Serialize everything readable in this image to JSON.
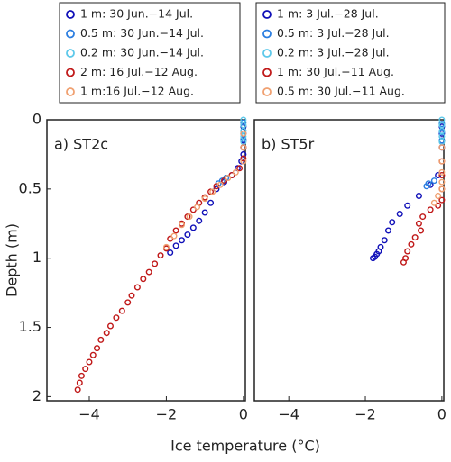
{
  "chart_data": [
    {
      "type": "scatter",
      "title": "a) ST2c",
      "xlabel": "Ice temperature (°C)",
      "ylabel": "Depth (m)",
      "xlim": [
        -5.1,
        0.05
      ],
      "ylim": [
        0,
        2.03
      ],
      "xticks": [
        {
          "value": -4,
          "label": "−4"
        },
        {
          "value": -2,
          "label": "−2"
        },
        0
      ],
      "yticks": [
        0,
        0.5,
        1,
        1.5,
        2
      ],
      "series": [
        {
          "name": "1 m: 30 Jun.−14 Jul.",
          "color": "#1010b8",
          "x": [
            0,
            0,
            0,
            0,
            0,
            -0.05,
            -0.15,
            -0.3,
            -0.5,
            -0.7,
            -0.85,
            -1.0,
            -1.15,
            -1.3,
            -1.45,
            -1.6,
            -1.75,
            -1.9
          ],
          "y": [
            0.05,
            0.1,
            0.15,
            0.2,
            0.25,
            0.3,
            0.35,
            0.4,
            0.45,
            0.5,
            0.6,
            0.67,
            0.73,
            0.78,
            0.83,
            0.87,
            0.91,
            0.96
          ]
        },
        {
          "name": "0.5 m: 30 Jun.−14 Jul.",
          "color": "#2a7de0",
          "x": [
            0,
            0,
            0,
            0,
            -0.45,
            -0.55,
            -0.65
          ],
          "y": [
            0.02,
            0.08,
            0.14,
            0.2,
            0.42,
            0.44,
            0.46
          ]
        },
        {
          "name": "0.2 m: 30 Jun.−14 Jul.",
          "color": "#5cc8ea",
          "x": [
            0,
            0,
            0,
            0,
            0
          ],
          "y": [
            0,
            0.04,
            0.08,
            0.12,
            0.16
          ]
        },
        {
          "name": "2 m: 16 Jul.−12 Aug.",
          "color": "#c01818",
          "x": [
            0,
            0,
            -0.1,
            -0.3,
            -0.5,
            -0.7,
            -0.85,
            -1.0,
            -1.15,
            -1.3,
            -1.45,
            -1.6,
            -1.75,
            -1.9,
            -2.0,
            -2.15,
            -2.3,
            -2.45,
            -2.6,
            -2.75,
            -2.9,
            -3.0,
            -3.15,
            -3.3,
            -3.45,
            -3.55,
            -3.7,
            -3.8,
            -3.9,
            -4.0,
            -4.1,
            -4.2,
            -4.25,
            -4.3
          ],
          "y": [
            0.2,
            0.28,
            0.35,
            0.4,
            0.44,
            0.48,
            0.52,
            0.56,
            0.6,
            0.65,
            0.7,
            0.75,
            0.8,
            0.86,
            0.93,
            0.98,
            1.04,
            1.1,
            1.15,
            1.21,
            1.27,
            1.32,
            1.38,
            1.43,
            1.49,
            1.54,
            1.59,
            1.65,
            1.7,
            1.75,
            1.8,
            1.85,
            1.9,
            1.95
          ]
        },
        {
          "name": "1 m:16 Jul.−12 Aug.",
          "color": "#f0a070",
          "x": [
            0,
            0,
            0,
            -0.2,
            -0.4,
            -0.6,
            -0.8,
            -1.0,
            -1.2,
            -1.4,
            -1.6,
            -1.8,
            -2.0
          ],
          "y": [
            0.1,
            0.2,
            0.3,
            0.38,
            0.42,
            0.47,
            0.52,
            0.57,
            0.63,
            0.7,
            0.76,
            0.84,
            0.92
          ]
        }
      ]
    },
    {
      "type": "scatter",
      "title": "b) ST5r",
      "xlim": [
        -4.9,
        0.05
      ],
      "ylim": [
        0,
        2.03
      ],
      "xticks": [
        {
          "value": -4,
          "label": "−4"
        },
        {
          "value": -2,
          "label": "−2"
        },
        0
      ],
      "series": [
        {
          "name": "1 m: 3 Jul.−28 Jul.",
          "color": "#1010b8",
          "x": [
            0,
            0,
            0,
            0,
            -0.1,
            -0.3,
            -0.6,
            -0.9,
            -1.1,
            -1.3,
            -1.4,
            -1.5,
            -1.6,
            -1.65,
            -1.7,
            -1.75,
            -1.8
          ],
          "y": [
            0.05,
            0.1,
            0.15,
            0.2,
            0.4,
            0.47,
            0.55,
            0.62,
            0.68,
            0.74,
            0.8,
            0.87,
            0.92,
            0.95,
            0.97,
            0.99,
            1.0
          ]
        },
        {
          "name": "0.5 m: 3 Jul.−28 Jul.",
          "color": "#2a7de0",
          "x": [
            0,
            0,
            0,
            -0.2,
            -0.35,
            -0.4
          ],
          "y": [
            0.03,
            0.09,
            0.15,
            0.44,
            0.46,
            0.48
          ]
        },
        {
          "name": "0.2 m: 3 Jul.−28 Jul.",
          "color": "#5cc8ea",
          "x": [
            0,
            0,
            0,
            0,
            0
          ],
          "y": [
            0,
            0.04,
            0.08,
            0.12,
            0.16
          ]
        },
        {
          "name": "1 m: 30 Jul.−11 Aug.",
          "color": "#c01818",
          "x": [
            0,
            0,
            0,
            0,
            -0.1,
            -0.3,
            -0.5,
            -0.6,
            -0.55,
            -0.7,
            -0.8,
            -0.9,
            -0.95,
            -1.0
          ],
          "y": [
            0.3,
            0.4,
            0.5,
            0.58,
            0.62,
            0.65,
            0.7,
            0.75,
            0.8,
            0.85,
            0.9,
            0.95,
            1.0,
            1.03
          ]
        },
        {
          "name": "0.5 m: 30 Jul.−11 Aug.",
          "color": "#f0a070",
          "x": [
            0,
            0,
            0,
            0,
            0,
            -0.1,
            -0.2
          ],
          "y": [
            0.2,
            0.3,
            0.38,
            0.45,
            0.5,
            0.55,
            0.6
          ]
        }
      ]
    }
  ]
}
